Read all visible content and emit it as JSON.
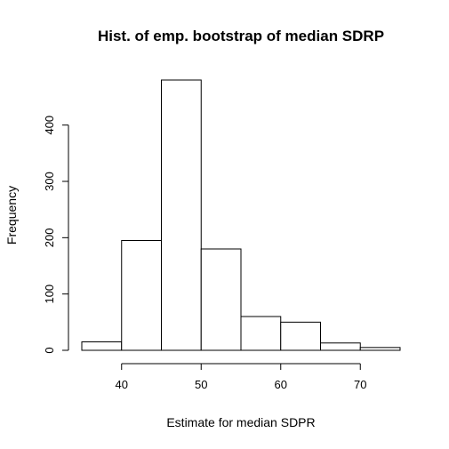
{
  "chart_data": {
    "type": "bar",
    "subtype": "histogram",
    "title": "Hist. of emp. bootstrap of median SDRP",
    "xlabel": "Estimate for median SDPR",
    "ylabel": "Frequency",
    "bins": [
      {
        "start": 35,
        "end": 40,
        "count": 15
      },
      {
        "start": 40,
        "end": 45,
        "count": 195
      },
      {
        "start": 45,
        "end": 50,
        "count": 480
      },
      {
        "start": 50,
        "end": 55,
        "count": 180
      },
      {
        "start": 55,
        "end": 60,
        "count": 60
      },
      {
        "start": 60,
        "end": 65,
        "count": 50
      },
      {
        "start": 65,
        "end": 70,
        "count": 13
      },
      {
        "start": 70,
        "end": 75,
        "count": 5
      }
    ],
    "xlim": [
      35,
      75
    ],
    "ylim": [
      0,
      480
    ],
    "xticks": [
      40,
      50,
      60,
      70
    ],
    "yticks": [
      0,
      100,
      200,
      300,
      400
    ],
    "grid": false,
    "bar_fill": "#ffffff",
    "bar_stroke": "#000000"
  }
}
